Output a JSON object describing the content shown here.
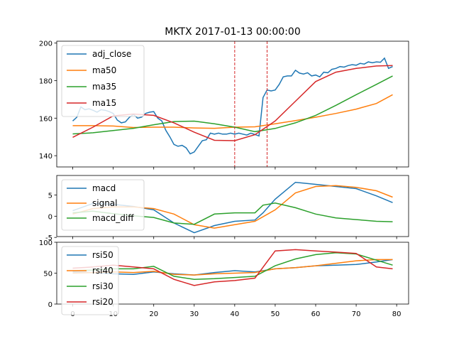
{
  "chart_data": [
    {
      "type": "line",
      "title": "MKTX 2017-01-13 00:00:00",
      "ylim": [
        134,
        201
      ],
      "yticks": [
        140,
        160,
        180,
        200
      ],
      "xlim": [
        -3.95,
        82.95
      ],
      "grid": false,
      "legend_position": "top-left",
      "vlines": [
        40,
        48
      ],
      "vline_color": "#d62728",
      "series": [
        {
          "name": "adj_close",
          "color": "#1f77b4",
          "x": [
            0,
            1,
            2,
            3,
            4,
            5,
            6,
            7,
            8,
            9,
            10,
            11,
            12,
            13,
            14,
            15,
            16,
            17,
            18,
            19,
            20,
            21,
            22,
            23,
            24,
            25,
            26,
            27,
            28,
            29,
            30,
            31,
            32,
            33,
            34,
            35,
            36,
            37,
            38,
            39,
            40,
            41,
            42,
            43,
            44,
            45,
            46,
            47,
            48,
            49,
            50,
            51,
            52,
            53,
            54,
            55,
            56,
            57,
            58,
            59,
            60,
            61,
            62,
            63,
            64,
            65,
            66,
            67,
            68,
            69,
            70,
            71,
            72,
            73,
            74,
            75,
            76,
            77,
            78,
            79
          ],
          "values": [
            158.5,
            160.5,
            166,
            164.5,
            165,
            164.2,
            163.2,
            164.5,
            164.2,
            163.5,
            162.5,
            159,
            157.5,
            158,
            160.5,
            162,
            160,
            160.5,
            162.5,
            163.2,
            163.5,
            160,
            158.5,
            153.5,
            150,
            146,
            145,
            145.5,
            144.2,
            141,
            142,
            145,
            148,
            148.5,
            152,
            151.5,
            152,
            151.5,
            151.5,
            152,
            151.5,
            152,
            151.5,
            151,
            152,
            151.3,
            150.5,
            171,
            175,
            174.5,
            175,
            178,
            182,
            182.5,
            182.5,
            185.5,
            184,
            183.5,
            184.2,
            182.5,
            183,
            182,
            184.5,
            184.2,
            186,
            186.5,
            187.5,
            187.2,
            188,
            188.5,
            188.2,
            189.2,
            188.8,
            190,
            189.5,
            190,
            189.8,
            192,
            186.5,
            187.5
          ]
        },
        {
          "name": "ma50",
          "color": "#ff7f0e",
          "x": [
            0,
            5,
            10,
            15,
            20,
            25,
            30,
            35,
            40,
            45,
            50,
            55,
            60,
            65,
            70,
            75,
            79
          ],
          "values": [
            156,
            156,
            155.8,
            155,
            155.2,
            155.2,
            154.8,
            154.6,
            155.2,
            155.4,
            157,
            158.7,
            160.5,
            162.5,
            164.8,
            167.8,
            172.5
          ]
        },
        {
          "name": "ma35",
          "color": "#2ca02c",
          "x": [
            0,
            5,
            10,
            15,
            20,
            25,
            30,
            35,
            40,
            45,
            50,
            55,
            60,
            65,
            70,
            75,
            79
          ],
          "values": [
            151.6,
            152.2,
            153.4,
            154.6,
            156.5,
            158.2,
            158.4,
            157,
            155.2,
            152.8,
            154.5,
            157.5,
            161.5,
            166.8,
            172.5,
            178,
            182.5
          ]
        },
        {
          "name": "ma15",
          "color": "#d62728",
          "x": [
            0,
            5,
            10,
            15,
            20,
            25,
            30,
            35,
            40,
            45,
            50,
            55,
            60,
            65,
            70,
            75,
            79
          ],
          "values": [
            149.8,
            155.2,
            161.2,
            162.2,
            161.5,
            157.5,
            152.5,
            148.2,
            148,
            151.2,
            158.5,
            169,
            179.5,
            184.5,
            186.5,
            187.8,
            188
          ]
        }
      ]
    },
    {
      "type": "line",
      "ylim": [
        -4.8,
        9.6
      ],
      "yticks": [
        -5,
        0,
        5
      ],
      "xlim": [
        -3.95,
        82.95
      ],
      "grid": false,
      "legend_position": "top-left",
      "series": [
        {
          "name": "macd",
          "color": "#1f77b4",
          "x": [
            0,
            5,
            10,
            15,
            20,
            25,
            30,
            35,
            40,
            45,
            47,
            50,
            55,
            60,
            65,
            70,
            75,
            79
          ],
          "values": [
            1.3,
            3,
            2.8,
            2.3,
            1.5,
            -1.6,
            -3.9,
            -2.2,
            -1.2,
            -0.9,
            0.8,
            4,
            8,
            7.5,
            7,
            6.5,
            4.8,
            3.2
          ]
        },
        {
          "name": "signal",
          "color": "#ff7f0e",
          "x": [
            0,
            5,
            10,
            15,
            20,
            25,
            30,
            35,
            40,
            45,
            50,
            55,
            60,
            65,
            70,
            75,
            79
          ],
          "values": [
            0.5,
            1.8,
            2.2,
            2.2,
            1.8,
            0.5,
            -2,
            -2.8,
            -2,
            -1.2,
            1.5,
            5.5,
            7,
            7.2,
            6.8,
            6,
            4.5
          ]
        },
        {
          "name": "macd_diff",
          "color": "#2ca02c",
          "x": [
            0,
            5,
            10,
            15,
            20,
            25,
            30,
            35,
            40,
            45,
            47,
            50,
            55,
            60,
            65,
            70,
            75,
            79
          ],
          "values": [
            0.8,
            1.2,
            0.6,
            0.1,
            -0.3,
            -1.6,
            -1.9,
            0.5,
            0.8,
            0.8,
            2.6,
            3.1,
            2,
            0.5,
            -0.4,
            -0.8,
            -1.2,
            -1.3
          ]
        }
      ]
    },
    {
      "type": "line",
      "ylim": [
        0,
        100
      ],
      "yticks": [
        0,
        50,
        100
      ],
      "xlim": [
        -3.95,
        82.95
      ],
      "xticks": [
        0,
        10,
        20,
        30,
        40,
        50,
        60,
        70,
        80
      ],
      "grid": false,
      "legend_position": "top-left",
      "series": [
        {
          "name": "rsi50",
          "color": "#1f77b4",
          "x": [
            0,
            5,
            10,
            15,
            20,
            25,
            30,
            35,
            40,
            45,
            50,
            55,
            60,
            65,
            70,
            75,
            79
          ],
          "values": [
            52,
            51,
            49,
            48,
            52,
            49,
            47,
            51,
            54,
            52,
            57,
            59,
            62,
            63,
            64,
            68,
            72
          ]
        },
        {
          "name": "rsi40",
          "color": "#ff7f0e",
          "x": [
            0,
            5,
            10,
            15,
            20,
            25,
            30,
            35,
            40,
            45,
            50,
            55,
            60,
            65,
            70,
            75,
            79
          ],
          "values": [
            50,
            51,
            52,
            51,
            53,
            48,
            47,
            49,
            50,
            51,
            57,
            59,
            62,
            66,
            70,
            72,
            72
          ]
        },
        {
          "name": "rsi30",
          "color": "#2ca02c",
          "x": [
            0,
            5,
            10,
            15,
            20,
            25,
            30,
            35,
            40,
            45,
            50,
            55,
            60,
            65,
            70,
            75,
            79
          ],
          "values": [
            54,
            55,
            57,
            57,
            61,
            45,
            40,
            41,
            43,
            45,
            62,
            73,
            80,
            83,
            81,
            71,
            63
          ]
        },
        {
          "name": "rsi20",
          "color": "#d62728",
          "x": [
            0,
            5,
            10,
            15,
            20,
            25,
            30,
            35,
            40,
            45,
            50,
            55,
            60,
            65,
            70,
            75,
            79
          ],
          "values": [
            58,
            60,
            63,
            60,
            57,
            40,
            30,
            36,
            38,
            42,
            86,
            88,
            86,
            84,
            82,
            60,
            57
          ]
        }
      ]
    }
  ]
}
